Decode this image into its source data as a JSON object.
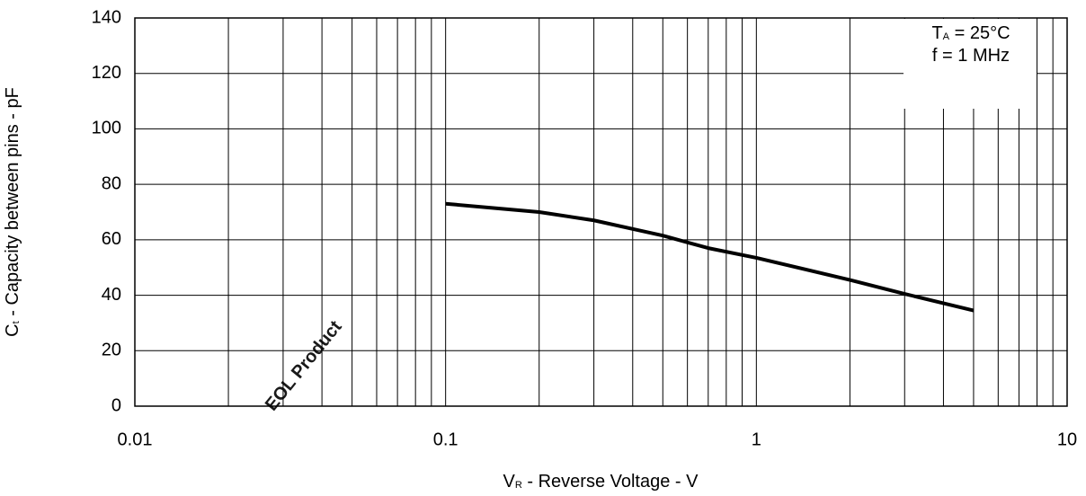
{
  "chart_data": {
    "type": "line",
    "watermark": "EOL Product",
    "xlabel": {
      "symbol": "V",
      "sub": "R",
      "text": " - Reverse Voltage - V"
    },
    "ylabel": {
      "symbol": "C",
      "sub": "t",
      "text": " - Capacity between pins - pF"
    },
    "annotations": [
      {
        "symbol": "T",
        "sub": "A",
        "text": " = 25°C"
      },
      {
        "text": "f = 1 MHz"
      }
    ],
    "xscale": "log",
    "xlim": [
      0.01,
      10
    ],
    "xticks": [
      0.01,
      0.1,
      1,
      10
    ],
    "minor_xticks": [
      0.02,
      0.03,
      0.04,
      0.05,
      0.06,
      0.07,
      0.08,
      0.09,
      0.2,
      0.3,
      0.4,
      0.5,
      0.6,
      0.7,
      0.8,
      0.9,
      2,
      3,
      4,
      5,
      6,
      7,
      8,
      9
    ],
    "ylim": [
      0,
      140
    ],
    "yticks": [
      0,
      20,
      40,
      60,
      80,
      100,
      120,
      140
    ],
    "grid": true,
    "series": [
      {
        "color": "#000000",
        "x": [
          0.1,
          0.2,
          0.3,
          0.5,
          0.7,
          1,
          2,
          3,
          5
        ],
        "values": [
          73,
          70,
          67,
          61.5,
          57,
          53.5,
          45.5,
          40.5,
          34.5
        ]
      }
    ]
  }
}
